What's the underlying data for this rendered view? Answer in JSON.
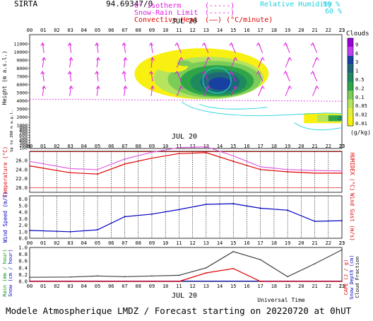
{
  "header": {
    "station": "SIRTA",
    "coords": "94.69347/0",
    "legend": [
      {
        "label": "0° isotherm",
        "sample": "(-----)",
        "color": "#e020e0"
      },
      {
        "label": "Snow-Rain Limit",
        "sample": "(-----)",
        "color": "#e020e0"
      },
      {
        "label": "Convective Heat",
        "sample": "(——) (°C/minute)",
        "color": "#e00000"
      }
    ],
    "rh_label": "Relative Humidity",
    "rh_values": [
      "90 %",
      "60 %"
    ],
    "rh_color": "#20d0e0"
  },
  "footer": {
    "title": "Modele Atmospherique LMDZ / Forecast starting on 20220720 at 0hUT",
    "universal_time": "Universal Time"
  },
  "chart_data": [
    {
      "panel": "clouds",
      "type": "heatmap",
      "date_label": "JUL 20",
      "x_ticks": [
        "01",
        "02",
        "03",
        "04",
        "05",
        "06",
        "07",
        "08",
        "09",
        "10",
        "11",
        "12",
        "13",
        "14",
        "15",
        "16",
        "17",
        "18",
        "19",
        "20",
        "21",
        "22",
        "23"
      ],
      "ylabel": "Height (m a.s.l.)",
      "ylabel_lower": "Up to 200 m a.g.l.",
      "y_ticks": [
        "11000",
        "10000",
        "9000",
        "8000",
        "7000",
        "6000",
        "5000",
        "4000",
        "3000",
        "2000",
        "1000",
        "900",
        "800",
        "700",
        "600",
        "500",
        "400",
        "300",
        "200",
        "100"
      ],
      "colorbar": {
        "title": "Clouds",
        "unit": "(g/kg)",
        "levels": [
          "9",
          "6",
          "3",
          "1",
          "0.5",
          "0.2",
          "0.1",
          "0.05",
          "0.02",
          "0.01"
        ],
        "colors": [
          "#9a00d8",
          "#c040f0",
          "#1840a0",
          "#1e6878",
          "#1f8a60",
          "#2fa548",
          "#7ccd58",
          "#b6e45e",
          "#e2f03a",
          "#f8f010"
        ]
      },
      "isotherm_0c_m": 4200,
      "cloud_core": {
        "x_start": "11",
        "x_end": "17",
        "peak_hour": "15",
        "height_range_m": [
          3800,
          9000
        ],
        "max_level": "1"
      },
      "low_cloud": {
        "x_start": "20",
        "x_end": "23",
        "height_range_m": [
          1600,
          2100
        ]
      }
    },
    {
      "panel": "temperature",
      "type": "line",
      "date_label": "JUL 20",
      "ylabel": "Temperature (°C)",
      "ylabel_right": "HUMIDEX (°C)",
      "y_ticks": [
        "26.0",
        "24.0",
        "22.0",
        "20.0"
      ],
      "ylim": [
        19.0,
        28.0
      ],
      "x": [
        0,
        3,
        5,
        7,
        9,
        11,
        13,
        15,
        17,
        19,
        21,
        23
      ],
      "series": [
        {
          "values": [
            24.8,
            23.3,
            23.0,
            25.2,
            26.5,
            27.5,
            27.7,
            25.8,
            24.0,
            23.5,
            23.2,
            23.2
          ],
          "color": "#e00000"
        },
        {
          "values": [
            25.8,
            24.2,
            24.0,
            26.3,
            27.8,
            28.8,
            29.0,
            27.0,
            24.6,
            24.0,
            23.8,
            23.7
          ],
          "color": "#e060e0"
        }
      ],
      "reference_lines": [
        20.0,
        27.9
      ]
    },
    {
      "panel": "wind",
      "type": "line",
      "ylabel": "Wind Speed (m/s)",
      "ylabel_right": "Wind Gust (m/s)",
      "y_ticks": [
        "6.0",
        "5.0",
        "4.0",
        "3.0",
        "2.0",
        "1.0",
        "0.0"
      ],
      "ylim": [
        0.0,
        6.5
      ],
      "x": [
        0,
        3,
        5,
        7,
        9,
        11,
        13,
        15,
        17,
        19,
        21,
        23
      ],
      "series": [
        {
          "values": [
            1.2,
            1.0,
            1.3,
            3.3,
            3.7,
            4.4,
            5.2,
            5.3,
            4.6,
            4.3,
            2.6,
            2.7
          ],
          "color": "#0000c0"
        }
      ]
    },
    {
      "panel": "precip",
      "type": "line",
      "date_label": "JUL 20",
      "xlabel": "Universal Time",
      "y_ticks": [
        "1.0",
        "0.8",
        "0.6",
        "0.4",
        "0.2",
        "0.0"
      ],
      "ylim": [
        0.0,
        1.0
      ],
      "ylabel_left": [
        "Rain (mm / hour)",
        "Snow (cm / hour)"
      ],
      "ylabel_right": [
        "CAPE (J / g)",
        "Snow Depth (cm)",
        "Cloud Fraction"
      ],
      "x": [
        0,
        3,
        5,
        7,
        9,
        11,
        13,
        15,
        17,
        19,
        21,
        23
      ],
      "series": [
        {
          "values": [
            0.12,
            0.13,
            0.16,
            0.14,
            0.16,
            0.18,
            0.4,
            0.88,
            0.64,
            0.14,
            0.52,
            0.93
          ],
          "color": "#404040"
        },
        {
          "values": [
            0.0,
            0.0,
            0.0,
            0.0,
            0.0,
            0.0,
            0.25,
            0.38,
            0.0,
            0.0,
            0.0,
            0.0
          ],
          "color": "#e00000"
        }
      ]
    }
  ]
}
